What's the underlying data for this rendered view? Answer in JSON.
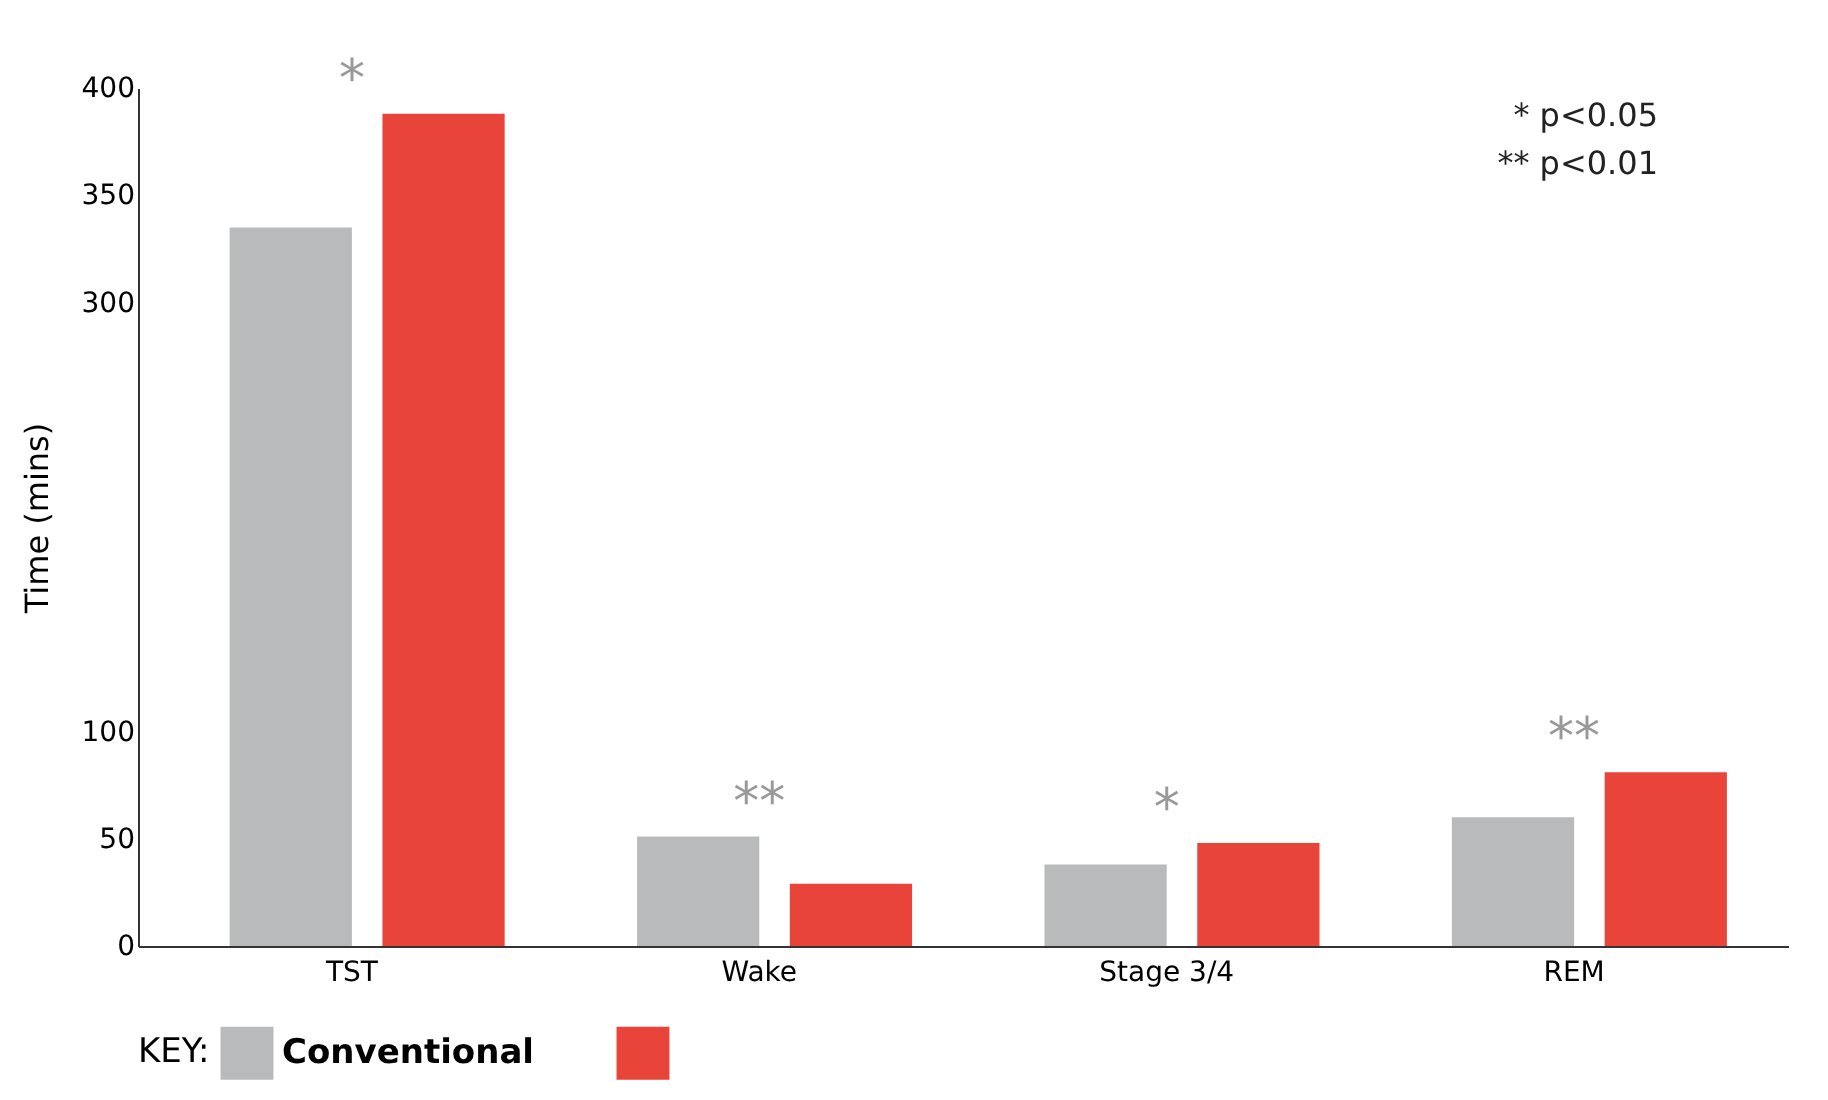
{
  "chart_data": {
    "type": "bar",
    "ylabel": "Time (mins)",
    "legend_title": "KEY:",
    "legend": "bottom",
    "categories": [
      "TST",
      "Wake",
      "Stage 3/4",
      "REM"
    ],
    "series": [
      {
        "name": "Conventional",
        "color": "#b9babc",
        "values": [
          335,
          51,
          38,
          60
        ]
      },
      {
        "color": "#e8443a",
        "values": [
          388,
          29,
          48,
          81
        ]
      }
    ],
    "ylim": [
      0,
      400
    ],
    "yticks": [
      0,
      50,
      100,
      300,
      350,
      400
    ],
    "annotations": [
      "*",
      "**",
      "*",
      "**",
      "* p<0.05",
      "** p<0.01"
    ]
  }
}
